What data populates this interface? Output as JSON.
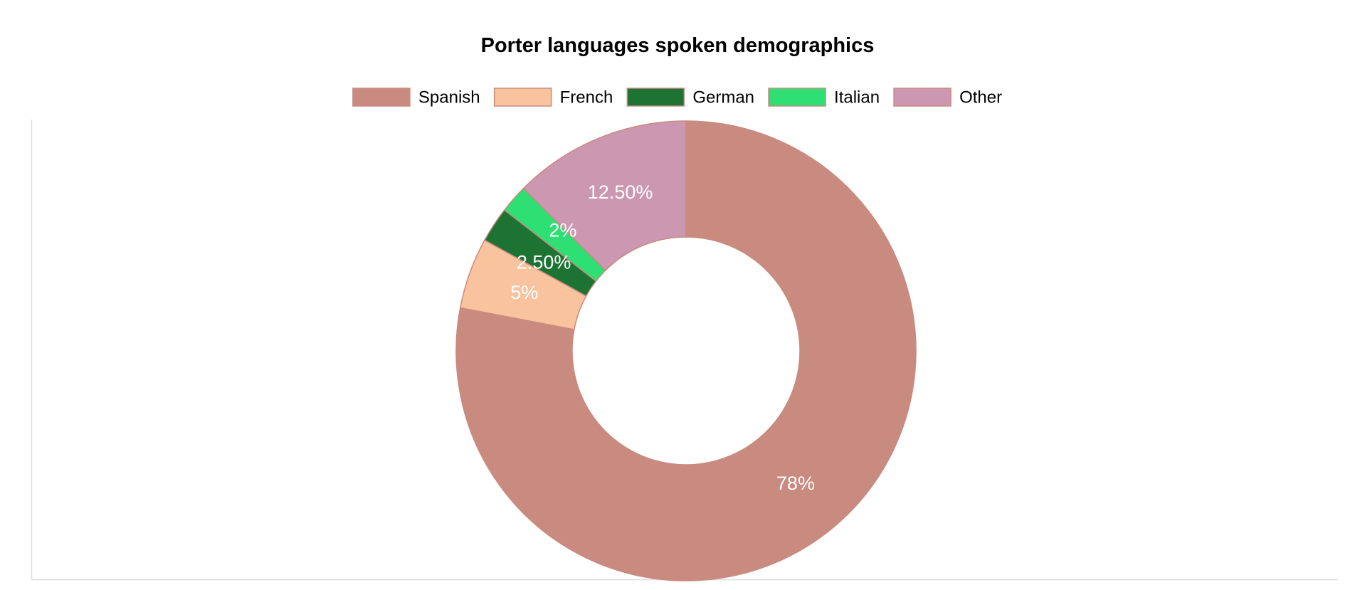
{
  "chart_data": {
    "type": "pie",
    "variant": "doughnut",
    "title": "Porter languages spoken demographics",
    "legend_position": "top-center",
    "grid": false,
    "categories": [
      "Spanish",
      "French",
      "German",
      "Italian",
      "Other"
    ],
    "values": [
      78,
      5,
      2.5,
      2,
      12.5
    ],
    "labels": [
      "78%",
      "5%",
      "2.50%",
      "2%",
      "12.50%"
    ],
    "colors": [
      "#c98a80",
      "#f8c39d",
      "#1d7332",
      "#2edf74",
      "#cb97b1"
    ],
    "border_color": "#c98a80",
    "label_color": "#ffffff"
  }
}
